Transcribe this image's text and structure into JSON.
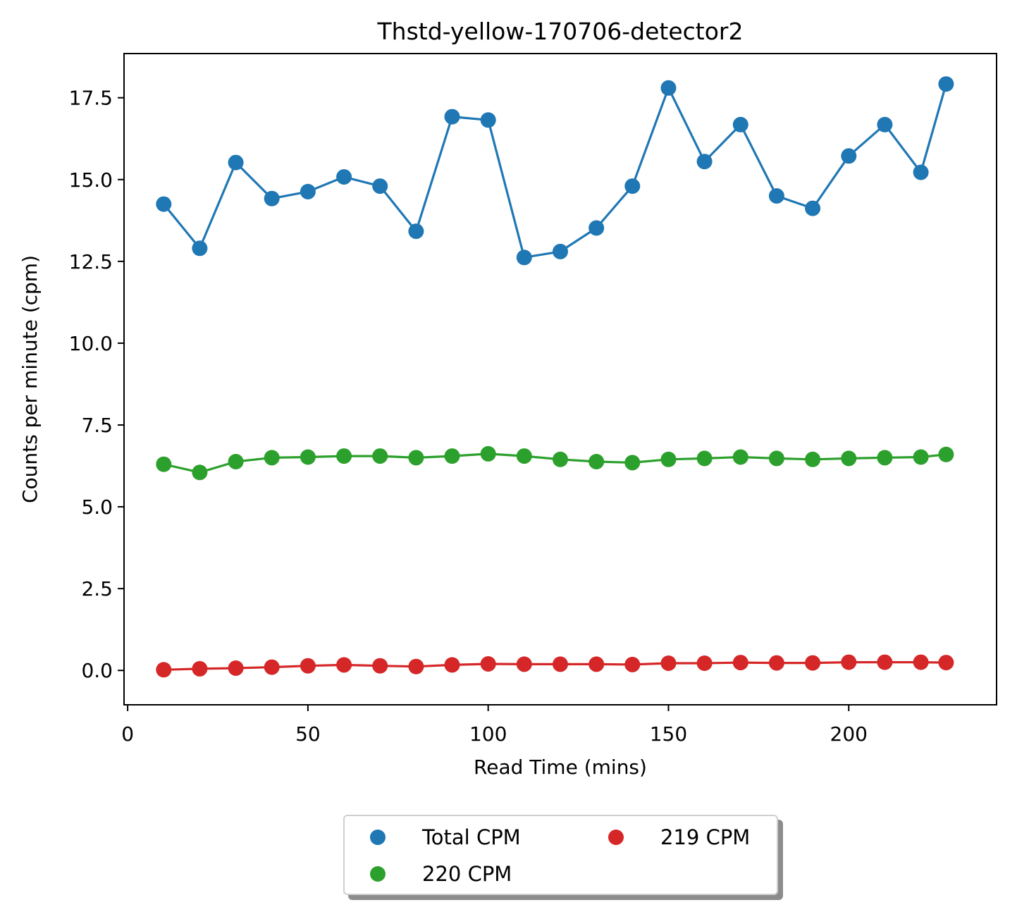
{
  "chart_data": {
    "type": "line",
    "title": "Thstd-yellow-170706-detector2",
    "xlabel": "Read Time (mins)",
    "ylabel": "Counts per minute (cpm)",
    "xlim": [
      -1,
      241
    ],
    "ylim": [
      -1.05,
      18.85
    ],
    "xticks": [
      0,
      50,
      100,
      150,
      200
    ],
    "xtick_labels": [
      "0",
      "50",
      "100",
      "150",
      "200"
    ],
    "yticks": [
      0.0,
      2.5,
      5.0,
      7.5,
      10.0,
      12.5,
      15.0,
      17.5
    ],
    "ytick_labels": [
      "0.0",
      "2.5",
      "5.0",
      "7.5",
      "10.0",
      "12.5",
      "15.0",
      "17.5"
    ],
    "grid": false,
    "legend_position": "below-center",
    "x": [
      10,
      20,
      30,
      40,
      50,
      60,
      70,
      80,
      90,
      100,
      110,
      120,
      130,
      140,
      150,
      160,
      170,
      180,
      190,
      200,
      210,
      220,
      227
    ],
    "series": [
      {
        "name": "Total CPM",
        "color": "#1f77b4",
        "values": [
          14.25,
          12.9,
          15.52,
          14.42,
          14.63,
          15.08,
          14.8,
          13.42,
          16.92,
          16.82,
          12.62,
          12.8,
          13.52,
          14.8,
          17.8,
          15.55,
          16.68,
          14.5,
          14.12,
          15.72,
          16.68,
          15.22,
          17.92
        ]
      },
      {
        "name": "220 CPM",
        "color": "#2ca02c",
        "values": [
          6.3,
          6.05,
          6.38,
          6.5,
          6.52,
          6.55,
          6.55,
          6.5,
          6.55,
          6.62,
          6.55,
          6.45,
          6.38,
          6.35,
          6.45,
          6.48,
          6.52,
          6.48,
          6.45,
          6.48,
          6.5,
          6.52,
          6.6
        ]
      },
      {
        "name": "219 CPM",
        "color": "#d62728",
        "values": [
          0.02,
          0.05,
          0.07,
          0.1,
          0.14,
          0.17,
          0.14,
          0.12,
          0.17,
          0.2,
          0.19,
          0.19,
          0.19,
          0.18,
          0.22,
          0.22,
          0.24,
          0.23,
          0.23,
          0.25,
          0.25,
          0.25,
          0.24
        ]
      }
    ]
  }
}
